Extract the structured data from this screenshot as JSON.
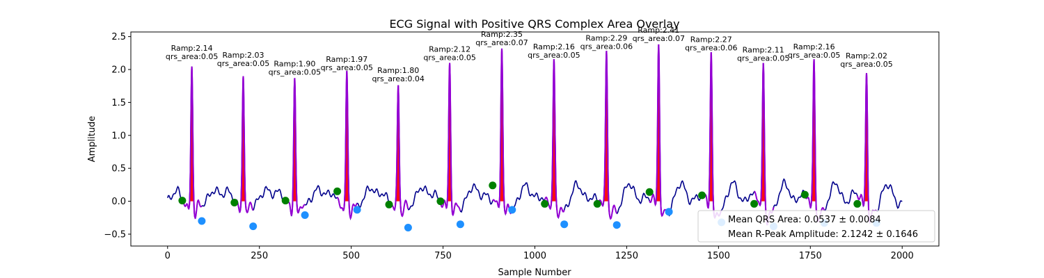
{
  "chart_data": {
    "type": "line",
    "title": "ECG Signal with Positive QRS Complex Area Overlay",
    "xlabel": "Sample Number",
    "ylabel": "Amplitude",
    "xlim": [
      -100,
      2100
    ],
    "ylim": [
      -0.68,
      2.57
    ],
    "xticks": [
      0,
      250,
      500,
      750,
      1000,
      1250,
      1500,
      1750,
      2000
    ],
    "yticks": [
      -0.5,
      0.0,
      0.5,
      1.0,
      1.5,
      2.0,
      2.5
    ],
    "xtick_labels": [
      "0",
      "250",
      "500",
      "750",
      "1000",
      "1250",
      "1500",
      "1750",
      "2000"
    ],
    "ytick_labels": [
      "−0.5",
      "0.0",
      "0.5",
      "1.0",
      "1.5",
      "2.0",
      "2.5"
    ],
    "grid": false,
    "colors": {
      "signal": "#00008b",
      "qrs_segment": "#9400d3",
      "qrs_area": "#ff0000",
      "onset_marker": "#008000",
      "offset_marker": "#1e90ff"
    },
    "beats": [
      {
        "r_x": 66,
        "r_amp": 2.14,
        "qrs_area": 0.05,
        "onset_x": 40,
        "onset_y": 0.01,
        "offset_x": 93,
        "offset_y": -0.3,
        "ramp_label": "Ramp:2.14",
        "area_label": "qrs_area:0.05"
      },
      {
        "r_x": 206,
        "r_amp": 2.03,
        "qrs_area": 0.05,
        "onset_x": 182,
        "onset_y": -0.02,
        "offset_x": 233,
        "offset_y": -0.38,
        "ramp_label": "Ramp:2.03",
        "area_label": "qrs_area:0.05"
      },
      {
        "r_x": 346,
        "r_amp": 1.9,
        "qrs_area": 0.05,
        "onset_x": 321,
        "onset_y": 0.01,
        "offset_x": 374,
        "offset_y": -0.21,
        "ramp_label": "Ramp:1.90",
        "area_label": "qrs_area:0.05"
      },
      {
        "r_x": 488,
        "r_amp": 1.97,
        "qrs_area": 0.05,
        "onset_x": 462,
        "onset_y": 0.15,
        "offset_x": 516,
        "offset_y": -0.13,
        "ramp_label": "Ramp:1.97",
        "area_label": "qrs_area:0.05"
      },
      {
        "r_x": 628,
        "r_amp": 1.8,
        "qrs_area": 0.04,
        "onset_x": 603,
        "onset_y": -0.05,
        "offset_x": 655,
        "offset_y": -0.4,
        "ramp_label": "Ramp:1.80",
        "area_label": "qrs_area:0.04"
      },
      {
        "r_x": 768,
        "r_amp": 2.12,
        "qrs_area": 0.05,
        "onset_x": 743,
        "onset_y": 0.0,
        "offset_x": 797,
        "offset_y": -0.35,
        "ramp_label": "Ramp:2.12",
        "area_label": "qrs_area:0.05"
      },
      {
        "r_x": 910,
        "r_amp": 2.35,
        "qrs_area": 0.07,
        "onset_x": 885,
        "onset_y": 0.24,
        "offset_x": 938,
        "offset_y": -0.13,
        "ramp_label": "Ramp:2.35",
        "area_label": "qrs_area:0.07"
      },
      {
        "r_x": 1052,
        "r_amp": 2.16,
        "qrs_area": 0.05,
        "onset_x": 1027,
        "onset_y": -0.04,
        "offset_x": 1080,
        "offset_y": -0.35,
        "ramp_label": "Ramp:2.16",
        "area_label": "qrs_area:0.05"
      },
      {
        "r_x": 1195,
        "r_amp": 2.29,
        "qrs_area": 0.06,
        "onset_x": 1170,
        "onset_y": -0.04,
        "offset_x": 1223,
        "offset_y": -0.36,
        "ramp_label": "Ramp:2.29",
        "area_label": "qrs_area:0.06"
      },
      {
        "r_x": 1337,
        "r_amp": 2.41,
        "qrs_area": 0.07,
        "onset_x": 1312,
        "onset_y": 0.14,
        "offset_x": 1365,
        "offset_y": -0.16,
        "ramp_label": "Ramp:2.41",
        "area_label": "qrs_area:0.07"
      },
      {
        "r_x": 1480,
        "r_amp": 2.27,
        "qrs_area": 0.06,
        "onset_x": 1455,
        "onset_y": 0.09,
        "offset_x": 1508,
        "offset_y": -0.32,
        "ramp_label": "Ramp:2.27",
        "area_label": "qrs_area:0.06"
      },
      {
        "r_x": 1622,
        "r_amp": 2.11,
        "qrs_area": 0.05,
        "onset_x": 1597,
        "onset_y": -0.04,
        "offset_x": 1650,
        "offset_y": -0.38,
        "ramp_label": "Ramp:2.11",
        "area_label": "qrs_area:0.05"
      },
      {
        "r_x": 1760,
        "r_amp": 2.16,
        "qrs_area": 0.05,
        "onset_x": 1735,
        "onset_y": 0.1,
        "offset_x": 1788,
        "offset_y": -0.33,
        "ramp_label": "Ramp:2.16",
        "area_label": "qrs_area:0.05"
      },
      {
        "r_x": 1903,
        "r_amp": 2.02,
        "qrs_area": 0.05,
        "onset_x": 1878,
        "onset_y": -0.04,
        "offset_x": 1930,
        "offset_y": -0.33,
        "ramp_label": "Ramp:2.02",
        "area_label": "qrs_area:0.05"
      }
    ],
    "signal_x_range": [
      0,
      2000
    ],
    "signal_end_values": {
      "start": 0.15,
      "end": 0.1
    },
    "legend": {
      "placement": "lower right",
      "entries": [
        "Mean QRS Area: 0.0537 ± 0.0084",
        "Mean R-Peak Amplitude: 2.1242 ± 0.1646"
      ]
    }
  }
}
